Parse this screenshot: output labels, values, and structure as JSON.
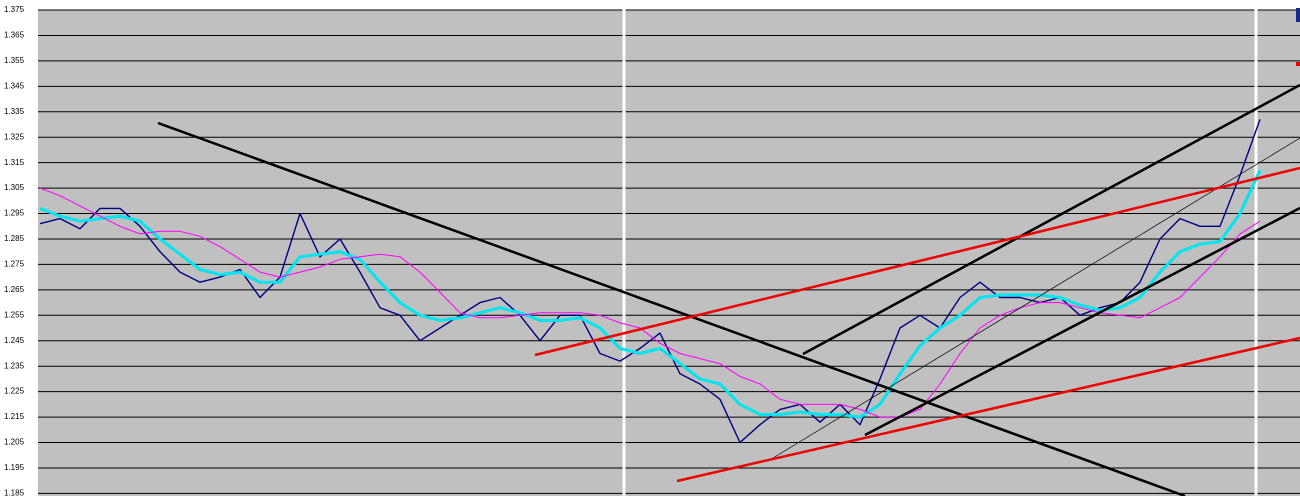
{
  "chart_data": {
    "type": "line",
    "categories": [
      null,
      null,
      null,
      null,
      null,
      null,
      null,
      null,
      null,
      null,
      null,
      null,
      null,
      null,
      null,
      null,
      null,
      null,
      null,
      null,
      null,
      null,
      null,
      null,
      null,
      null,
      null,
      null,
      null,
      null,
      null,
      null,
      null,
      null,
      null,
      null,
      null,
      null,
      null,
      null,
      null,
      null,
      null,
      null,
      null,
      null,
      null,
      null,
      null,
      null,
      null,
      null,
      null,
      null,
      null,
      null,
      null,
      null,
      null,
      null,
      null,
      null
    ],
    "series": [
      {
        "color": "#000080",
        "width": 1.4,
        "values": [
          1.291,
          1.293,
          1.289,
          1.297,
          1.297,
          1.29,
          1.28,
          1.272,
          1.268,
          1.27,
          1.273,
          1.262,
          1.27,
          1.295,
          1.278,
          1.285,
          1.272,
          1.258,
          1.255,
          1.245,
          1.25,
          1.255,
          1.26,
          1.262,
          1.255,
          1.245,
          1.255,
          1.255,
          1.24,
          1.237,
          1.242,
          1.248,
          1.232,
          1.228,
          1.222,
          1.205,
          1.212,
          1.218,
          1.22,
          1.213,
          1.22,
          1.212,
          1.23,
          1.25,
          1.255,
          1.25,
          1.262,
          1.268,
          1.262,
          1.262,
          1.26,
          1.262,
          1.255,
          1.258,
          1.26,
          1.268,
          1.285,
          1.293,
          1.29,
          1.29,
          1.31,
          1.332
        ]
      },
      {
        "color": "#00e5ee",
        "width": 3,
        "values": [
          1.297,
          1.294,
          1.292,
          1.293,
          1.294,
          1.292,
          1.285,
          1.279,
          1.273,
          1.271,
          1.272,
          1.268,
          1.268,
          1.278,
          1.279,
          1.28,
          1.277,
          1.268,
          1.26,
          1.255,
          1.253,
          1.254,
          1.256,
          1.258,
          1.256,
          1.253,
          1.253,
          1.254,
          1.25,
          1.242,
          1.24,
          1.242,
          1.236,
          1.23,
          1.228,
          1.22,
          1.216,
          1.216,
          1.217,
          1.216,
          1.216,
          1.215,
          1.22,
          1.232,
          1.243,
          1.25,
          1.255,
          1.262,
          1.263,
          1.263,
          1.263,
          1.262,
          1.259,
          1.257,
          1.258,
          1.262,
          1.272,
          1.28,
          1.283,
          1.284,
          1.295,
          1.312
        ]
      },
      {
        "color": "#ff00ff",
        "width": 1,
        "values": [
          1.305,
          1.302,
          1.298,
          1.294,
          1.29,
          1.287,
          1.288,
          1.288,
          1.286,
          1.282,
          1.277,
          1.272,
          1.27,
          1.272,
          1.274,
          1.277,
          1.278,
          1.279,
          1.278,
          1.272,
          1.264,
          1.256,
          1.254,
          1.254,
          1.255,
          1.256,
          1.256,
          1.256,
          1.255,
          1.252,
          1.25,
          1.244,
          1.24,
          1.238,
          1.236,
          1.231,
          1.228,
          1.222,
          1.22,
          1.22,
          1.22,
          1.218,
          1.215,
          1.215,
          1.218,
          1.228,
          1.24,
          1.25,
          1.255,
          1.258,
          1.26,
          1.26,
          1.258,
          1.256,
          1.255,
          1.254,
          1.258,
          1.262,
          1.27,
          1.278,
          1.287,
          1.292
        ]
      }
    ],
    "ylim": [
      1.185,
      1.375
    ],
    "yticks": [
      1.185,
      1.195,
      1.205,
      1.215,
      1.225,
      1.235,
      1.245,
      1.255,
      1.265,
      1.275,
      1.285,
      1.295,
      1.305,
      1.315,
      1.325,
      1.335,
      1.345,
      1.355,
      1.365,
      1.375
    ],
    "grid": true
  }
}
